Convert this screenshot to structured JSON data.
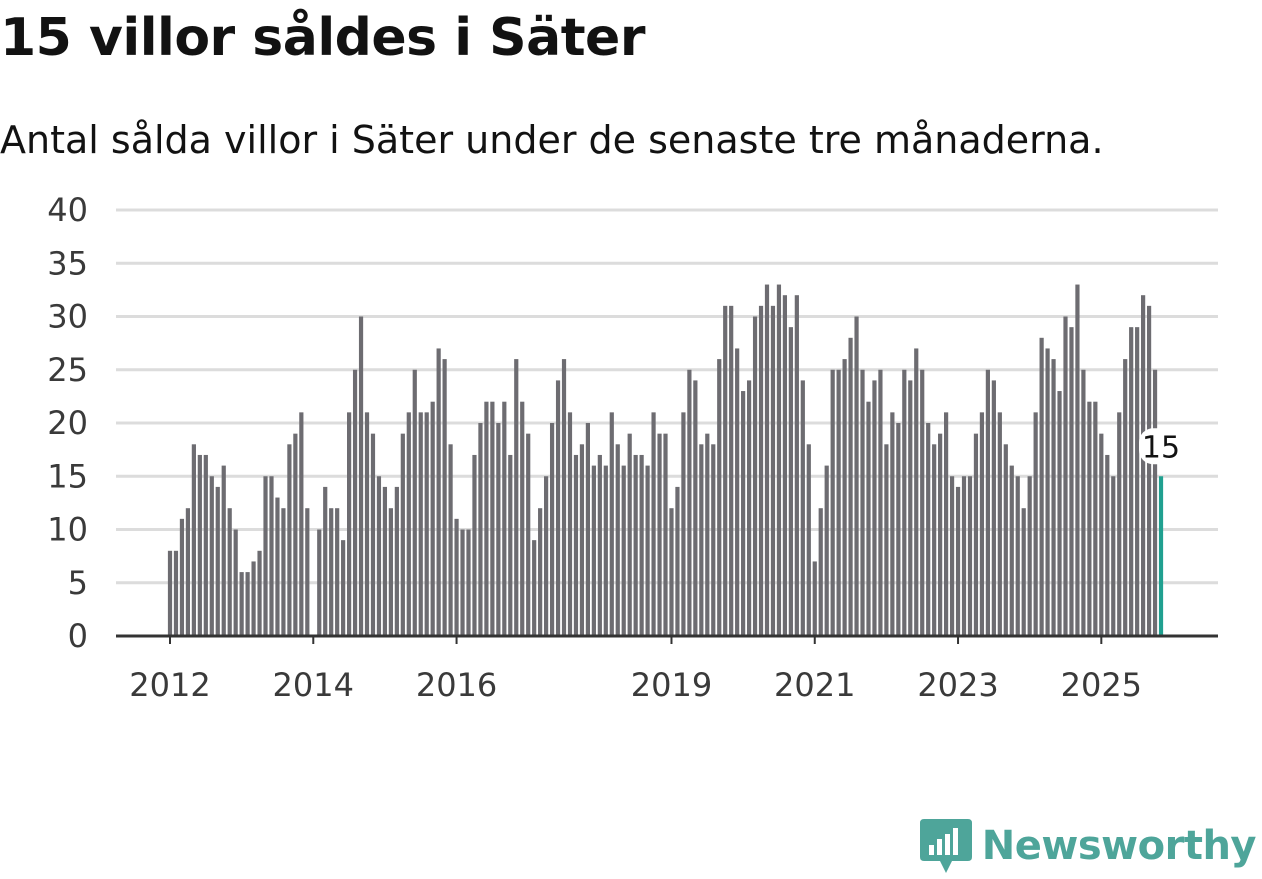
{
  "header": {
    "title": "15 villor såldes i Säter",
    "subtitle": "Antal sålda villor i Säter under de senaste tre månaderna."
  },
  "brand": {
    "name": "Newsworthy",
    "color": "#4ea59a"
  },
  "colors": {
    "bar": "#6d6c71",
    "highlight": "#20a090",
    "grid": "#dcdcdc",
    "axis": "#333333"
  },
  "chart_data": {
    "type": "bar",
    "title": "15 villor såldes i Säter",
    "subtitle": "Antal sålda villor i Säter under de senaste tre månaderna.",
    "xlabel": "",
    "ylabel": "",
    "ylim": [
      0,
      40
    ],
    "yticks": [
      0,
      5,
      10,
      15,
      20,
      25,
      30,
      35,
      40
    ],
    "xticks": [
      {
        "label": "2012",
        "index": 0
      },
      {
        "label": "2014",
        "index": 24
      },
      {
        "label": "2016",
        "index": 48
      },
      {
        "label": "2019",
        "index": 84
      },
      {
        "label": "2021",
        "index": 108
      },
      {
        "label": "2023",
        "index": 132
      },
      {
        "label": "2025",
        "index": 156
      }
    ],
    "start": "2012-01",
    "frequency": "monthly",
    "values": [
      8,
      8,
      11,
      12,
      18,
      17,
      17,
      15,
      14,
      16,
      12,
      10,
      6,
      6,
      7,
      8,
      15,
      15,
      13,
      12,
      18,
      19,
      21,
      12,
      null,
      10,
      14,
      12,
      12,
      9,
      21,
      25,
      30,
      21,
      19,
      15,
      14,
      12,
      14,
      19,
      21,
      25,
      21,
      21,
      22,
      27,
      26,
      18,
      11,
      10,
      10,
      17,
      20,
      22,
      22,
      20,
      22,
      17,
      26,
      22,
      19,
      9,
      12,
      15,
      20,
      24,
      26,
      21,
      17,
      18,
      20,
      16,
      17,
      16,
      21,
      18,
      16,
      19,
      17,
      17,
      16,
      21,
      19,
      19,
      12,
      14,
      21,
      25,
      24,
      18,
      19,
      18,
      26,
      31,
      31,
      27,
      23,
      24,
      30,
      31,
      33,
      31,
      33,
      32,
      29,
      32,
      24,
      18,
      7,
      12,
      16,
      25,
      25,
      26,
      28,
      30,
      25,
      22,
      24,
      25,
      18,
      21,
      20,
      25,
      24,
      27,
      25,
      20,
      18,
      19,
      21,
      15,
      14,
      15,
      15,
      19,
      21,
      25,
      24,
      21,
      18,
      16,
      15,
      12,
      15,
      21,
      28,
      27,
      26,
      23,
      30,
      29,
      33,
      25,
      22,
      22,
      19,
      17,
      15,
      21,
      26,
      29,
      29,
      32,
      31,
      25,
      15
    ],
    "highlight_last": true,
    "last_label": "15"
  }
}
